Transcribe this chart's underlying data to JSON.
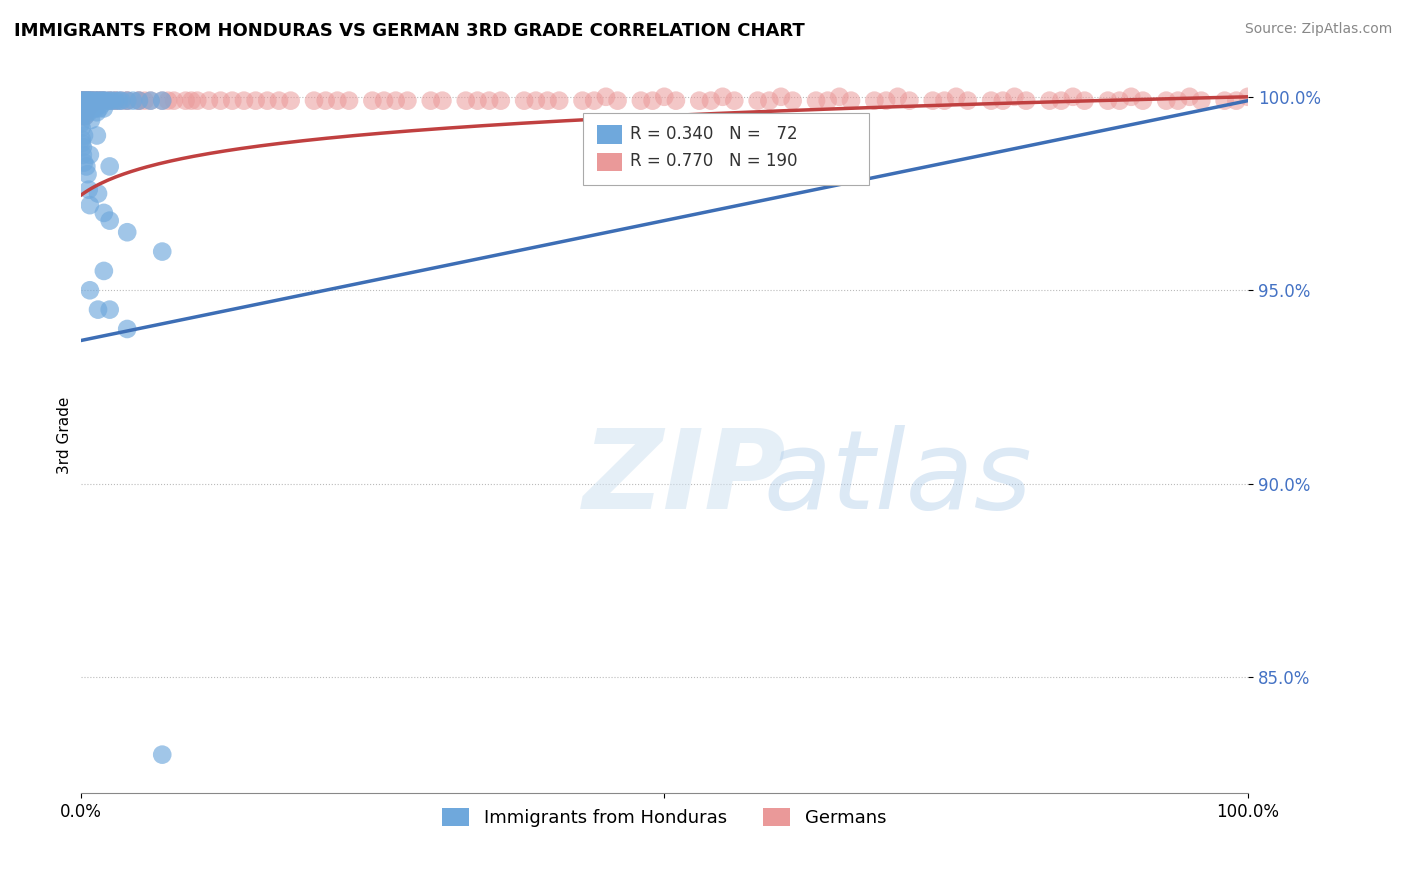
{
  "title": "IMMIGRANTS FROM HONDURAS VS GERMAN 3RD GRADE CORRELATION CHART",
  "source": "Source: ZipAtlas.com",
  "ylabel": "3rd Grade",
  "xlim": [
    0.0,
    1.0
  ],
  "ylim": [
    0.82,
    1.005
  ],
  "yticks": [
    0.85,
    0.9,
    0.95,
    1.0
  ],
  "ytick_labels": [
    "85.0%",
    "90.0%",
    "95.0%",
    "100.0%"
  ],
  "background_color": "#ffffff",
  "blue_color": "#6fa8dc",
  "pink_color": "#ea9999",
  "blue_line_color": "#3d6eb5",
  "pink_line_color": "#c04040",
  "legend_label_blue": "Immigrants from Honduras",
  "legend_label_pink": "Germans",
  "blue_scatter_x": [
    0.0,
    0.0,
    0.0,
    0.001,
    0.001,
    0.001,
    0.001,
    0.002,
    0.002,
    0.002,
    0.003,
    0.003,
    0.003,
    0.004,
    0.004,
    0.005,
    0.005,
    0.006,
    0.006,
    0.007,
    0.007,
    0.008,
    0.008,
    0.009,
    0.009,
    0.01,
    0.01,
    0.011,
    0.012,
    0.012,
    0.013,
    0.013,
    0.014,
    0.015,
    0.015,
    0.016,
    0.016,
    0.018,
    0.018,
    0.019,
    0.02,
    0.02,
    0.022,
    0.025,
    0.025,
    0.027,
    0.03,
    0.033,
    0.035,
    0.04,
    0.04,
    0.045,
    0.05,
    0.06,
    0.07,
    0.07,
    0.001,
    0.002,
    0.008,
    0.015,
    0.02,
    0.025,
    0.008,
    0.015,
    0.001,
    0.003,
    0.007,
    0.014,
    0.02,
    0.025,
    0.04,
    0.07
  ],
  "blue_scatter_y": [
    0.999,
    0.998,
    0.993,
    0.999,
    0.998,
    0.995,
    0.989,
    0.999,
    0.998,
    0.987,
    0.999,
    0.997,
    0.983,
    0.999,
    0.995,
    0.999,
    0.982,
    0.999,
    0.98,
    0.999,
    0.976,
    0.999,
    0.972,
    0.999,
    0.994,
    0.999,
    0.998,
    0.997,
    0.999,
    0.998,
    0.999,
    0.997,
    0.996,
    0.999,
    0.998,
    0.999,
    0.997,
    0.999,
    0.998,
    0.999,
    0.999,
    0.997,
    0.999,
    0.999,
    0.982,
    0.999,
    0.999,
    0.999,
    0.999,
    0.999,
    0.965,
    0.999,
    0.999,
    0.999,
    0.999,
    0.96,
    0.988,
    0.985,
    0.95,
    0.945,
    0.955,
    0.968,
    0.985,
    0.975,
    0.992,
    0.99,
    0.996,
    0.99,
    0.97,
    0.945,
    0.94,
    0.83
  ],
  "pink_scatter_x": [
    0.0,
    0.0,
    0.0,
    0.0,
    0.0,
    0.0,
    0.0,
    0.0,
    0.0,
    0.0,
    0.001,
    0.001,
    0.001,
    0.001,
    0.001,
    0.001,
    0.001,
    0.001,
    0.002,
    0.002,
    0.002,
    0.002,
    0.002,
    0.002,
    0.003,
    0.003,
    0.003,
    0.003,
    0.003,
    0.004,
    0.004,
    0.004,
    0.004,
    0.005,
    0.005,
    0.005,
    0.006,
    0.006,
    0.006,
    0.007,
    0.007,
    0.008,
    0.008,
    0.009,
    0.009,
    0.01,
    0.01,
    0.012,
    0.013,
    0.015,
    0.016,
    0.018,
    0.02,
    0.025,
    0.03,
    0.035,
    0.04,
    0.05,
    0.06,
    0.08,
    0.1,
    0.15,
    0.2,
    0.25,
    0.3,
    0.35,
    0.4,
    0.45,
    0.5,
    0.55,
    0.6,
    0.65,
    0.7,
    0.75,
    0.8,
    0.85,
    0.9,
    0.95,
    1.0,
    0.02,
    0.03,
    0.04,
    0.05,
    0.07,
    0.09,
    0.11,
    0.13,
    0.17,
    0.22,
    0.27,
    0.33,
    0.38,
    0.43,
    0.48,
    0.53,
    0.58,
    0.63,
    0.68,
    0.73,
    0.78,
    0.83,
    0.88,
    0.93,
    0.98,
    0.005,
    0.01,
    0.015,
    0.025,
    0.055,
    0.075,
    0.095,
    0.12,
    0.14,
    0.16,
    0.18,
    0.21,
    0.23,
    0.26,
    0.28,
    0.31,
    0.34,
    0.36,
    0.39,
    0.41,
    0.44,
    0.46,
    0.49,
    0.51,
    0.54,
    0.56,
    0.59,
    0.61,
    0.64,
    0.66,
    0.69,
    0.71,
    0.74,
    0.76,
    0.79,
    0.81,
    0.84,
    0.86,
    0.89,
    0.91,
    0.94,
    0.96,
    0.99
  ],
  "pink_scatter_y": [
    0.999,
    0.999,
    0.999,
    0.999,
    0.999,
    0.999,
    0.998,
    0.998,
    0.998,
    0.997,
    0.999,
    0.999,
    0.999,
    0.998,
    0.998,
    0.997,
    0.997,
    0.996,
    0.999,
    0.999,
    0.998,
    0.997,
    0.996,
    0.995,
    0.999,
    0.998,
    0.998,
    0.997,
    0.995,
    0.999,
    0.998,
    0.997,
    0.995,
    0.999,
    0.998,
    0.996,
    0.999,
    0.998,
    0.997,
    0.999,
    0.997,
    0.999,
    0.998,
    0.999,
    0.998,
    0.999,
    0.998,
    0.999,
    0.999,
    0.999,
    0.999,
    0.999,
    0.999,
    0.999,
    0.999,
    0.999,
    0.999,
    0.999,
    0.999,
    0.999,
    0.999,
    0.999,
    0.999,
    0.999,
    0.999,
    0.999,
    0.999,
    1.0,
    1.0,
    1.0,
    1.0,
    1.0,
    1.0,
    1.0,
    1.0,
    1.0,
    1.0,
    1.0,
    1.0,
    0.999,
    0.999,
    0.999,
    0.999,
    0.999,
    0.999,
    0.999,
    0.999,
    0.999,
    0.999,
    0.999,
    0.999,
    0.999,
    0.999,
    0.999,
    0.999,
    0.999,
    0.999,
    0.999,
    0.999,
    0.999,
    0.999,
    0.999,
    0.999,
    0.999,
    0.999,
    0.999,
    0.999,
    0.999,
    0.999,
    0.999,
    0.999,
    0.999,
    0.999,
    0.999,
    0.999,
    0.999,
    0.999,
    0.999,
    0.999,
    0.999,
    0.999,
    0.999,
    0.999,
    0.999,
    0.999,
    0.999,
    0.999,
    0.999,
    0.999,
    0.999,
    0.999,
    0.999,
    0.999,
    0.999,
    0.999,
    0.999,
    0.999,
    0.999,
    0.999,
    0.999,
    0.999,
    0.999,
    0.999,
    0.999,
    0.999,
    0.999,
    0.999
  ]
}
